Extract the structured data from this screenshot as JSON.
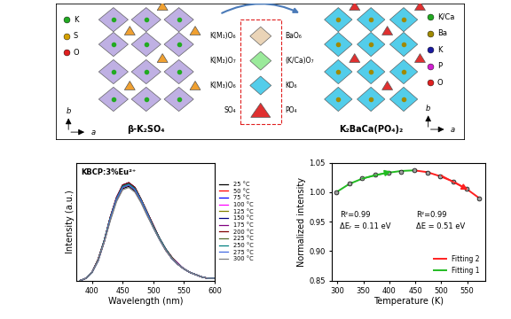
{
  "diagram": {
    "left": {
      "title": "β-K₂SO₄",
      "atoms": [
        {
          "label": "K",
          "color": "#22aa22"
        },
        {
          "label": "S",
          "color": "#d4a000"
        },
        {
          "label": "O",
          "color": "#e02020"
        }
      ],
      "axes": [
        "b",
        "a"
      ]
    },
    "right": {
      "title": "K₂BaCa(PO₄)₂",
      "atoms": [
        {
          "label": "K/Ca",
          "color": "#22aa22"
        },
        {
          "label": "Ba",
          "color": "#a08a00"
        },
        {
          "label": "K",
          "color": "#1a1aa0"
        },
        {
          "label": "P",
          "color": "#d020d0"
        },
        {
          "label": "O",
          "color": "#e02020"
        }
      ],
      "axes": [
        "b",
        "a"
      ]
    },
    "polyhedra": [
      {
        "left": "K(M₁)O₆",
        "right": "BaO₆"
      },
      {
        "left": "K(M₂)O₇",
        "right": "(K/Ca)O₇"
      },
      {
        "left": "K(M₃)O₆",
        "right": "KO₆"
      },
      {
        "left": "SO₄",
        "right": "PO₄"
      }
    ]
  },
  "chart_data": [
    {
      "type": "line",
      "annotation": "KBCP:3%Eu²⁺",
      "xlabel": "Wavelength (nm)",
      "ylabel": "Intensity (a.u.)",
      "x": [
        380,
        390,
        400,
        410,
        420,
        430,
        440,
        450,
        460,
        470,
        480,
        490,
        500,
        510,
        520,
        530,
        540,
        550,
        560,
        570,
        580,
        590,
        600
      ],
      "xlim": [
        375,
        600
      ],
      "xticks": [
        400,
        450,
        500,
        550,
        600
      ],
      "ylim": [
        0,
        1.0
      ],
      "tick_labels": "x",
      "legend": "right",
      "series": [
        {
          "name": "25 °C",
          "color": "#000000",
          "values": [
            0.0,
            0.02,
            0.07,
            0.17,
            0.33,
            0.52,
            0.68,
            0.78,
            0.8,
            0.76,
            0.67,
            0.56,
            0.45,
            0.35,
            0.26,
            0.19,
            0.14,
            0.1,
            0.07,
            0.05,
            0.03,
            0.02,
            0.02
          ]
        },
        {
          "name": "50 °C",
          "color": "#ff0000",
          "values": [
            0.0,
            0.02,
            0.07,
            0.17,
            0.33,
            0.53,
            0.69,
            0.79,
            0.81,
            0.77,
            0.68,
            0.57,
            0.46,
            0.36,
            0.26,
            0.19,
            0.14,
            0.1,
            0.07,
            0.05,
            0.03,
            0.02,
            0.02
          ]
        },
        {
          "name": "75 °C",
          "color": "#0000ff",
          "values": [
            0.0,
            0.02,
            0.07,
            0.17,
            0.34,
            0.53,
            0.7,
            0.8,
            0.82,
            0.78,
            0.69,
            0.57,
            0.46,
            0.36,
            0.27,
            0.19,
            0.14,
            0.1,
            0.07,
            0.05,
            0.03,
            0.02,
            0.02
          ]
        },
        {
          "name": "100 °C",
          "color": "#ff00ff",
          "values": [
            0.0,
            0.02,
            0.07,
            0.18,
            0.34,
            0.54,
            0.7,
            0.8,
            0.82,
            0.78,
            0.69,
            0.58,
            0.46,
            0.36,
            0.27,
            0.2,
            0.14,
            0.1,
            0.07,
            0.05,
            0.03,
            0.02,
            0.02
          ]
        },
        {
          "name": "125 °C",
          "color": "#808000",
          "values": [
            0.0,
            0.02,
            0.07,
            0.18,
            0.34,
            0.54,
            0.7,
            0.81,
            0.83,
            0.79,
            0.69,
            0.58,
            0.46,
            0.36,
            0.27,
            0.2,
            0.14,
            0.1,
            0.07,
            0.05,
            0.03,
            0.02,
            0.02
          ]
        },
        {
          "name": "150 °C",
          "color": "#000080",
          "values": [
            0.0,
            0.02,
            0.07,
            0.18,
            0.34,
            0.54,
            0.7,
            0.81,
            0.83,
            0.79,
            0.69,
            0.58,
            0.47,
            0.36,
            0.27,
            0.2,
            0.14,
            0.1,
            0.07,
            0.05,
            0.03,
            0.02,
            0.02
          ]
        },
        {
          "name": "175 °C",
          "color": "#800080",
          "values": [
            0.0,
            0.02,
            0.07,
            0.18,
            0.34,
            0.54,
            0.71,
            0.81,
            0.83,
            0.79,
            0.69,
            0.58,
            0.47,
            0.36,
            0.27,
            0.2,
            0.15,
            0.1,
            0.07,
            0.05,
            0.03,
            0.02,
            0.02
          ]
        },
        {
          "name": "200 °C",
          "color": "#800000",
          "values": [
            0.0,
            0.02,
            0.07,
            0.18,
            0.34,
            0.54,
            0.7,
            0.81,
            0.83,
            0.79,
            0.69,
            0.58,
            0.47,
            0.36,
            0.27,
            0.2,
            0.14,
            0.1,
            0.07,
            0.05,
            0.03,
            0.02,
            0.02
          ]
        },
        {
          "name": "225 °C",
          "color": "#556b2f",
          "values": [
            0.0,
            0.02,
            0.07,
            0.18,
            0.34,
            0.54,
            0.7,
            0.8,
            0.82,
            0.78,
            0.69,
            0.58,
            0.46,
            0.36,
            0.27,
            0.2,
            0.14,
            0.1,
            0.07,
            0.05,
            0.03,
            0.02,
            0.02
          ]
        },
        {
          "name": "250 °C",
          "color": "#008080",
          "values": [
            0.0,
            0.02,
            0.07,
            0.17,
            0.34,
            0.53,
            0.69,
            0.8,
            0.82,
            0.78,
            0.68,
            0.57,
            0.46,
            0.36,
            0.27,
            0.19,
            0.14,
            0.1,
            0.07,
            0.05,
            0.03,
            0.02,
            0.02
          ]
        },
        {
          "name": "275 °C",
          "color": "#4169e1",
          "values": [
            0.0,
            0.02,
            0.07,
            0.17,
            0.33,
            0.53,
            0.69,
            0.79,
            0.81,
            0.77,
            0.68,
            0.57,
            0.45,
            0.35,
            0.26,
            0.19,
            0.14,
            0.1,
            0.07,
            0.05,
            0.03,
            0.02,
            0.02
          ]
        },
        {
          "name": "300 °C",
          "color": "#808080",
          "values": [
            0.0,
            0.02,
            0.07,
            0.17,
            0.33,
            0.51,
            0.67,
            0.77,
            0.79,
            0.75,
            0.66,
            0.55,
            0.45,
            0.35,
            0.26,
            0.19,
            0.14,
            0.1,
            0.07,
            0.05,
            0.03,
            0.02,
            0.02
          ]
        }
      ]
    },
    {
      "type": "scatter",
      "xlabel": "Temperature (K)",
      "ylabel": "Normalized intensity",
      "xlim": [
        290,
        585
      ],
      "xticks": [
        300,
        350,
        400,
        450,
        500,
        550
      ],
      "ylim": [
        0.85,
        1.05
      ],
      "yticks": [
        0.85,
        {
          "value": 0.9,
          "label": "0.90"
        },
        0.95,
        {
          "value": 1.0,
          "label": "1.00"
        },
        1.05
      ],
      "legend": "lower right",
      "annotations": [
        "R²=0.99",
        "ΔEᵣ = 0.11 eV",
        "R²=0.99",
        "ΔE = 0.51 eV"
      ],
      "series": [
        {
          "type": "scatter",
          "color": "#9e9e9e",
          "marker": "o",
          "x": [
            298,
            323,
            348,
            373,
            398,
            423,
            448,
            473,
            498,
            523,
            548,
            573
          ],
          "values": [
            1.0,
            1.015,
            1.024,
            1.03,
            1.033,
            1.035,
            1.037,
            1.033,
            1.027,
            1.018,
            1.006,
            0.99
          ]
        },
        {
          "type": "line",
          "name": "Fitting 2",
          "color": "#ff2020",
          "line_style": "solid",
          "x": [
            448,
            473,
            498,
            523,
            548,
            573
          ],
          "values": [
            1.037,
            1.034,
            1.027,
            1.018,
            1.006,
            0.99
          ]
        },
        {
          "type": "line",
          "name": "Fitting 1",
          "color": "#22bb22",
          "line_style": "solid",
          "x": [
            298,
            323,
            348,
            373,
            398,
            423,
            448
          ],
          "values": [
            1.0,
            1.014,
            1.023,
            1.029,
            1.033,
            1.036,
            1.037
          ]
        }
      ]
    }
  ]
}
